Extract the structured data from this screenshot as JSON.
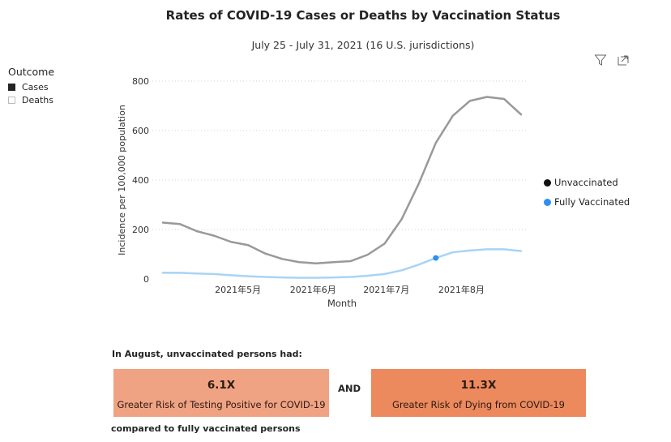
{
  "header": {
    "title": "Rates of COVID-19 Cases or Deaths by Vaccination Status",
    "subtitle": "July 25 - July 31, 2021 (16 U.S. jurisdictions)"
  },
  "toolbar": {
    "filter_icon": "filter-icon",
    "expand_icon": "focus-mode-icon"
  },
  "outcome_legend": {
    "title": "Outcome",
    "items": [
      {
        "label": "Cases",
        "color": "#252423",
        "filled": true
      },
      {
        "label": "Deaths",
        "color": "#ffffff",
        "filled": false
      }
    ]
  },
  "chart_data": {
    "type": "line",
    "title": "Rates of COVID-19 Cases or Deaths by Vaccination Status",
    "xlabel": "Month",
    "ylabel": "Incidence per 100,000 population",
    "ylim": [
      0,
      800
    ],
    "yticks": [
      0,
      200,
      400,
      600,
      800
    ],
    "x_tick_labels": [
      {
        "label": "2021年5月",
        "week": 4.4
      },
      {
        "label": "2021年6月",
        "week": 8.8
      },
      {
        "label": "2021年7月",
        "week": 13.1
      },
      {
        "label": "2021年8月",
        "week": 17.5
      }
    ],
    "x": [
      0,
      1,
      2,
      3,
      4,
      5,
      6,
      7,
      8,
      9,
      10,
      11,
      12,
      13,
      14,
      15,
      16,
      17,
      18,
      19,
      20,
      21
    ],
    "series": [
      {
        "name": "Unvaccinated",
        "color": "#999999",
        "legend_color": "#111111",
        "values": [
          228,
          222,
          193,
          175,
          150,
          137,
          103,
          81,
          68,
          63,
          68,
          72,
          98,
          143,
          242,
          385,
          550,
          660,
          720,
          736,
          728,
          665
        ]
      },
      {
        "name": "Fully Vaccinated",
        "color": "#a8d4f5",
        "legend_color": "#2f8ff0",
        "values": [
          25,
          25,
          22,
          20,
          15,
          11,
          8,
          6,
          5,
          5,
          6,
          8,
          13,
          20,
          35,
          58,
          85,
          108,
          115,
          120,
          120,
          113
        ]
      }
    ],
    "highlight_point": {
      "series": "Fully Vaccinated",
      "x": 16,
      "y": 85,
      "color": "#2f8ff0"
    },
    "grid": true
  },
  "summary": {
    "intro": "In August, unvaccinated persons had:",
    "boxes": [
      {
        "value": "6.1X",
        "label": "Greater Risk of Testing Positive for COVID-19",
        "color": "#f0a383"
      },
      {
        "value": "11.3X",
        "label": "Greater Risk of Dying from COVID-19",
        "color": "#ec8a5e"
      }
    ],
    "joiner": "AND",
    "outro": "compared to fully vaccinated persons"
  }
}
